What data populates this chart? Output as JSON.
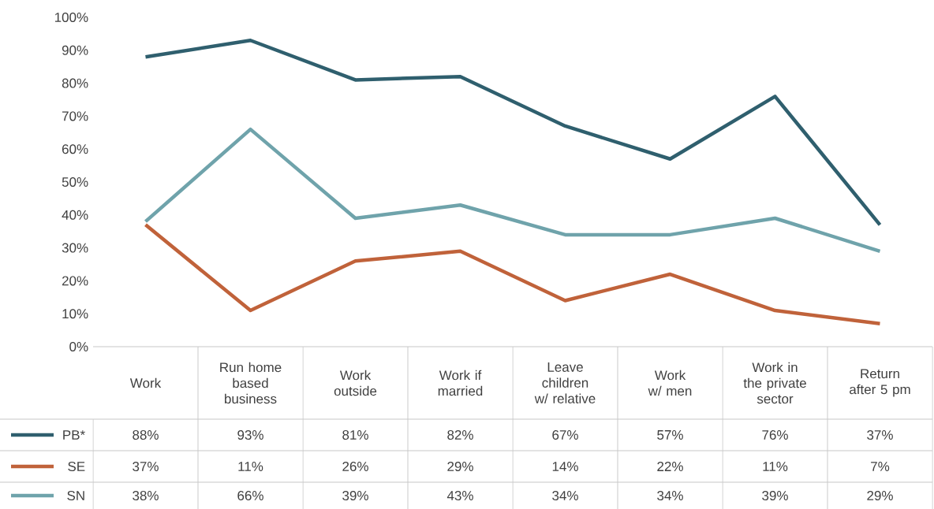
{
  "chart_data": {
    "type": "line",
    "categories": [
      "Work",
      "Run home based business",
      "Work outside",
      "Work if married",
      "Leave children w/ relative",
      "Work w/ men",
      "Work in the private sector",
      "Return after 5 pm"
    ],
    "series": [
      {
        "name": "PB*",
        "color": "#2f5f6e",
        "values": [
          88,
          93,
          81,
          82,
          67,
          57,
          76,
          37
        ],
        "value_labels": [
          "88%",
          "93%",
          "81%",
          "82%",
          "67%",
          "57%",
          "76%",
          "37%"
        ]
      },
      {
        "name": "SE",
        "color": "#c0623a",
        "values": [
          37,
          11,
          26,
          29,
          14,
          22,
          11,
          7
        ],
        "value_labels": [
          "37%",
          "11%",
          "26%",
          "29%",
          "14%",
          "22%",
          "11%",
          "7%"
        ]
      },
      {
        "name": "SN",
        "color": "#6fa3ab",
        "values": [
          38,
          66,
          39,
          43,
          34,
          34,
          39,
          29
        ],
        "value_labels": [
          "38%",
          "66%",
          "39%",
          "43%",
          "34%",
          "34%",
          "39%",
          "29%"
        ]
      }
    ],
    "ylim": [
      0,
      100
    ],
    "yticks": [
      {
        "value": 0,
        "label": "0%"
      },
      {
        "value": 10,
        "label": "10%"
      },
      {
        "value": 20,
        "label": "20%"
      },
      {
        "value": 30,
        "label": "30%"
      },
      {
        "value": 40,
        "label": "40%"
      },
      {
        "value": 50,
        "label": "50%"
      },
      {
        "value": 60,
        "label": "60%"
      },
      {
        "value": 70,
        "label": "70%"
      },
      {
        "value": 80,
        "label": "80%"
      },
      {
        "value": 90,
        "label": "90%"
      },
      {
        "value": 100,
        "label": "100%"
      }
    ],
    "grid": false,
    "legend": "bottom left",
    "marker": "none",
    "line_style": "solid"
  }
}
